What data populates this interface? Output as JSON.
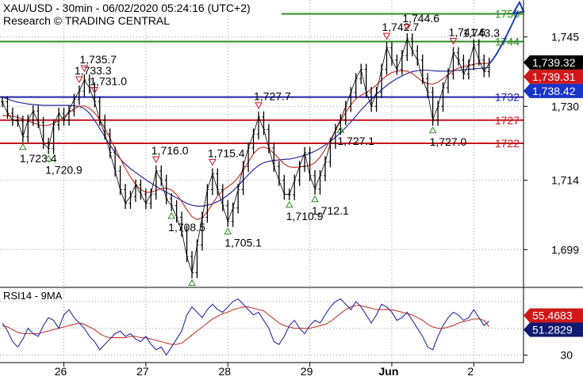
{
  "header": {
    "title": "XAU/USD - 30min - 06/02/2020 05:24:16 (UTC+2)",
    "subtitle": "Research © TRADING CENTRAL"
  },
  "colors": {
    "green": "#2e8b22",
    "blue": "#1f1fa8",
    "red": "#c8141e",
    "price": "#000000",
    "ma_fast": "#c0392b",
    "ma_slow": "#2a2aa0",
    "arrow": "#1a3fb0",
    "grid": "#9a9a9a",
    "tag_black": "#000000",
    "tag_red": "#d01818",
    "tag_blue": "#1833c8",
    "tag_rsi_blue": "#101a70"
  },
  "chart_data": [
    {
      "type": "line",
      "name": "price",
      "ylim": [
        1691,
        1753
      ],
      "y_ticks": [
        {
          "value": 1745,
          "label": "1,745"
        },
        {
          "value": 1730,
          "label": "1,730"
        },
        {
          "value": 1714,
          "label": "1,714"
        },
        {
          "value": 1699,
          "label": "1,699"
        }
      ],
      "x_ticks": [
        {
          "i": 12,
          "label": "26"
        },
        {
          "i": 28,
          "label": "27"
        },
        {
          "i": 44,
          "label": "28"
        },
        {
          "i": 60,
          "label": "29"
        },
        {
          "i": 76,
          "label": "Jun"
        },
        {
          "i": 92,
          "label": "2"
        }
      ],
      "levels": [
        {
          "value": 1750,
          "label": "1750",
          "color": "green"
        },
        {
          "value": 1744,
          "label": "1744",
          "color": "green"
        },
        {
          "value": 1732,
          "label": "1732",
          "color": "blue"
        },
        {
          "value": 1727,
          "label": "1727",
          "color": "red"
        },
        {
          "value": 1722,
          "label": "1722",
          "color": "red"
        }
      ],
      "tags": [
        {
          "value": 1739.32,
          "label": "1,739.32",
          "color": "tag_black"
        },
        {
          "value": 1739.31,
          "label": "1,739.31",
          "color": "tag_red"
        },
        {
          "value": 1738.42,
          "label": "1,738.42",
          "color": "tag_blue"
        }
      ],
      "close": [
        1731.0,
        1728.5,
        1727.0,
        1726.8,
        1723.4,
        1727.0,
        1729.0,
        1726.5,
        1722.0,
        1720.9,
        1726.0,
        1728.5,
        1727.0,
        1729.0,
        1731.5,
        1733.3,
        1735.7,
        1734.0,
        1731.0,
        1727.0,
        1724.0,
        1720.0,
        1716.0,
        1712.0,
        1709.0,
        1710.5,
        1713.0,
        1711.0,
        1709.0,
        1711.0,
        1716.0,
        1714.0,
        1710.0,
        1708.5,
        1706.0,
        1703.0,
        1697.5,
        1694.0,
        1700.0,
        1706.0,
        1712.0,
        1715.4,
        1712.0,
        1708.5,
        1705.1,
        1708.0,
        1712.0,
        1717.0,
        1721.0,
        1724.0,
        1727.7,
        1725.0,
        1721.0,
        1717.0,
        1714.0,
        1711.0,
        1710.9,
        1714.0,
        1717.0,
        1720.0,
        1715.0,
        1712.1,
        1715.0,
        1718.0,
        1722.0,
        1725.0,
        1727.1,
        1730.0,
        1733.0,
        1736.0,
        1738.0,
        1733.0,
        1730.0,
        1733.0,
        1738.0,
        1742.7,
        1740.0,
        1738.0,
        1741.0,
        1744.6,
        1742.0,
        1740.0,
        1736.0,
        1733.0,
        1727.0,
        1730.0,
        1734.0,
        1737.0,
        1741.6,
        1740.0,
        1737.0,
        1739.0,
        1743.3,
        1740.0,
        1737.5,
        1739.32
      ],
      "ma_fast": [
        1728.0,
        1728.0,
        1727.9,
        1727.6,
        1727.2,
        1726.8,
        1726.4,
        1726.1,
        1725.8,
        1725.9,
        1726.3,
        1726.9,
        1727.7,
        1728.6,
        1729.5,
        1730.0,
        1730.1,
        1729.6,
        1728.6,
        1727.1,
        1725.2,
        1723.1,
        1720.9,
        1718.7,
        1716.6,
        1714.7,
        1713.1,
        1712.0,
        1711.4,
        1711.4,
        1711.8,
        1712.2,
        1712.3,
        1711.9,
        1710.9,
        1709.4,
        1707.6,
        1706.1,
        1705.5,
        1705.9,
        1707.2,
        1708.9,
        1710.6,
        1711.8,
        1712.6,
        1713.4,
        1714.6,
        1716.2,
        1718.0,
        1719.7,
        1720.9,
        1721.2,
        1720.8,
        1719.8,
        1718.7,
        1717.5,
        1716.9,
        1716.8,
        1716.9,
        1717.0,
        1717.2,
        1717.8,
        1719.0,
        1720.7,
        1722.7,
        1724.8,
        1726.8,
        1728.7,
        1730.3,
        1731.6,
        1732.4,
        1733.0,
        1733.7,
        1734.6,
        1735.7,
        1736.6,
        1737.3,
        1737.6,
        1737.7,
        1737.6,
        1737.1,
        1736.2,
        1735.4,
        1734.9,
        1734.8,
        1735.2,
        1736.0,
        1736.9,
        1737.7,
        1738.3,
        1738.6,
        1738.8,
        1739.1,
        1739.3,
        1739.3,
        1739.3
      ],
      "ma_slow": [
        1732.0,
        1731.6,
        1731.2,
        1730.9,
        1730.7,
        1730.5,
        1730.4,
        1730.3,
        1730.2,
        1730.2,
        1730.2,
        1730.2,
        1730.2,
        1730.2,
        1730.1,
        1730.0,
        1729.5,
        1728.5,
        1727.0,
        1725.2,
        1723.4,
        1721.6,
        1720.0,
        1718.6,
        1717.5,
        1716.5,
        1715.7,
        1714.9,
        1714.1,
        1713.4,
        1712.7,
        1712.0,
        1711.4,
        1710.8,
        1710.2,
        1709.6,
        1709.0,
        1708.6,
        1708.4,
        1708.4,
        1708.6,
        1708.9,
        1709.4,
        1710.0,
        1710.8,
        1711.7,
        1712.8,
        1714.0,
        1715.2,
        1716.3,
        1717.2,
        1717.8,
        1718.1,
        1718.3,
        1718.4,
        1718.5,
        1718.6,
        1718.8,
        1719.1,
        1719.4,
        1719.8,
        1720.3,
        1720.9,
        1721.6,
        1722.4,
        1723.3,
        1724.3,
        1725.4,
        1726.6,
        1727.9,
        1729.2,
        1730.4,
        1731.5,
        1732.6,
        1733.6,
        1734.5,
        1735.3,
        1736.0,
        1736.6,
        1737.1,
        1737.5,
        1737.7,
        1737.8,
        1737.8,
        1737.7,
        1737.6,
        1737.6,
        1737.6,
        1737.7,
        1737.8,
        1737.9,
        1738.0,
        1738.1,
        1738.2,
        1738.3,
        1738.4
      ],
      "annotations": [
        {
          "i": 4,
          "value": 1723.4,
          "label": "1,723.4",
          "marker": "up"
        },
        {
          "i": 9,
          "value": 1720.9,
          "label": "1,720.9",
          "marker": "up"
        },
        {
          "i": 15,
          "value": 1733.3,
          "label": "1,733.3",
          "marker": "down"
        },
        {
          "i": 16,
          "value": 1735.7,
          "label": "1,735.7",
          "marker": "down"
        },
        {
          "i": 18,
          "value": 1731.0,
          "label": "1,731.0",
          "marker": "down"
        },
        {
          "i": 30,
          "value": 1716.0,
          "label": "1,716.0",
          "marker": "down"
        },
        {
          "i": 33,
          "value": 1708.5,
          "label": "1,708.5",
          "marker": "up"
        },
        {
          "i": 37,
          "value": 1694.0,
          "label": "",
          "marker": "up"
        },
        {
          "i": 41,
          "value": 1715.4,
          "label": "1,715.4",
          "marker": "down"
        },
        {
          "i": 44,
          "value": 1705.1,
          "label": "1,705.1",
          "marker": "up"
        },
        {
          "i": 50,
          "value": 1727.7,
          "label": "1,727.7",
          "marker": "down"
        },
        {
          "i": 56,
          "value": 1710.9,
          "label": "1,710.9",
          "marker": "up"
        },
        {
          "i": 61,
          "value": 1712.1,
          "label": "1,712.1",
          "marker": "up"
        },
        {
          "i": 66,
          "value": 1727.1,
          "label": "1,727.1",
          "marker": "up"
        },
        {
          "i": 75,
          "value": 1742.7,
          "label": "1,742.7",
          "marker": "down"
        },
        {
          "i": 79,
          "value": 1744.6,
          "label": "1,744.6",
          "marker": "down"
        },
        {
          "i": 84,
          "value": 1727.0,
          "label": "1,727.0",
          "marker": "up"
        },
        {
          "i": 88,
          "value": 1741.6,
          "label": "1,741.6",
          "marker": "down"
        },
        {
          "i": 92,
          "value": 1743.3,
          "label": "1,743.3",
          "marker": ""
        }
      ],
      "projection": {
        "from": {
          "i": 95,
          "value": 1739.32
        },
        "to": {
          "i": 100,
          "value": 1751.5
        }
      },
      "grid": true
    },
    {
      "type": "line",
      "title": "RSI14 - 9MA",
      "ylim": [
        25,
        80
      ],
      "y_ticks": [
        {
          "value": 30,
          "label": "30"
        }
      ],
      "dotted_levels": [
        70,
        50,
        30
      ],
      "tags": [
        {
          "value": 55.4683,
          "label": "55.4683",
          "color": "tag_red"
        },
        {
          "value": 51.2829,
          "label": "51.2829",
          "color": "tag_rsi_blue"
        }
      ],
      "rsi": [
        54,
        48,
        40,
        36,
        42,
        50,
        46,
        44,
        52,
        58,
        56,
        50,
        60,
        64,
        58,
        54,
        50,
        44,
        40,
        34,
        38,
        42,
        46,
        48,
        44,
        46,
        42,
        40,
        44,
        38,
        34,
        36,
        30,
        36,
        42,
        48,
        60,
        66,
        62,
        58,
        64,
        68,
        64,
        62,
        66,
        70,
        72,
        68,
        64,
        60,
        62,
        56,
        50,
        40,
        38,
        44,
        52,
        56,
        50,
        46,
        52,
        56,
        54,
        60,
        66,
        70,
        72,
        68,
        64,
        70,
        66,
        60,
        54,
        60,
        68,
        66,
        62,
        56,
        58,
        62,
        56,
        50,
        44,
        36,
        34,
        44,
        52,
        58,
        62,
        60,
        56,
        58,
        64,
        58,
        52,
        55.47
      ],
      "rsi_ma": [
        52,
        51,
        49,
        47,
        46,
        46,
        46,
        46,
        47,
        48,
        49,
        50,
        51,
        52,
        53,
        54,
        53,
        51,
        49,
        46,
        44,
        43,
        43,
        43,
        43,
        44,
        44,
        43,
        43,
        42,
        41,
        40,
        39,
        38,
        38,
        39,
        42,
        45,
        48,
        51,
        54,
        57,
        59,
        61,
        62,
        64,
        65,
        66,
        66,
        65,
        64,
        63,
        60,
        57,
        54,
        52,
        51,
        50,
        50,
        50,
        50,
        51,
        52,
        53,
        55,
        58,
        61,
        64,
        66,
        67,
        67,
        66,
        65,
        64,
        64,
        64,
        64,
        63,
        62,
        61,
        60,
        58,
        56,
        53,
        51,
        50,
        50,
        51,
        52,
        54,
        55,
        56,
        57,
        57,
        56,
        51.28
      ]
    }
  ]
}
